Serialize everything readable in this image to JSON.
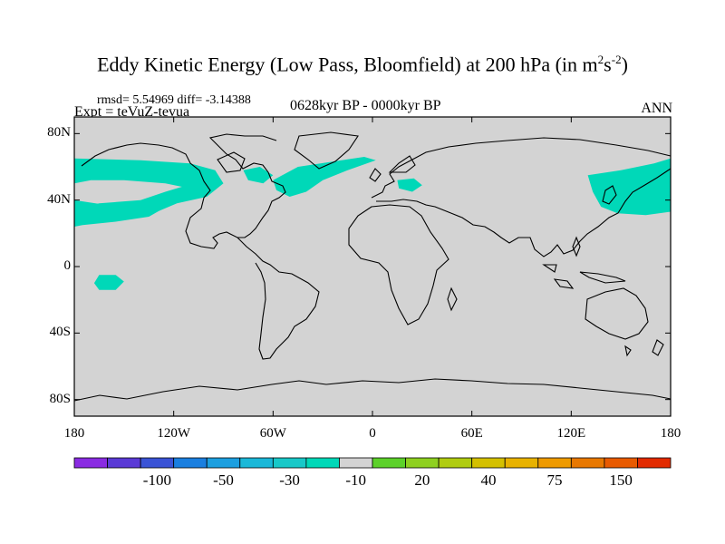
{
  "title": {
    "main": "Eddy Kinetic Energy (Low Pass, Bloomfield) at 200 hPa (in m",
    "unit_sup1": "2",
    "unit_mid": "s",
    "unit_sup2": "-2",
    "unit_close": ")"
  },
  "stats": "rmsd= 5.54969 diff= -3.14388",
  "period": "0628kyr BP - 0000kyr BP",
  "experiment": "Expt = teVuZ-tevua",
  "season": "ANN",
  "map": {
    "projection": "cylindrical-equidistant",
    "lon_range": [
      -180,
      180
    ],
    "lat_range": [
      -90,
      90
    ],
    "background_color": "#d3d3d3",
    "y_ticks": [
      {
        "lat": 80,
        "label": "80N"
      },
      {
        "lat": 40,
        "label": "40N"
      },
      {
        "lat": 0,
        "label": "0"
      },
      {
        "lat": -40,
        "label": "40S"
      },
      {
        "lat": -80,
        "label": "80S"
      }
    ],
    "x_ticks": [
      {
        "lon": -180,
        "label": "180"
      },
      {
        "lon": -120,
        "label": "120W"
      },
      {
        "lon": -60,
        "label": "60W"
      },
      {
        "lon": 0,
        "label": "0"
      },
      {
        "lon": 60,
        "label": "60E"
      },
      {
        "lon": 120,
        "label": "120E"
      },
      {
        "lon": 180,
        "label": "180"
      }
    ],
    "anomaly_regions": [
      {
        "name": "north-pacific-band",
        "level": -10,
        "color": "#00d8b8",
        "polygon_lonlat": [
          [
            -180,
            65
          ],
          [
            -140,
            64
          ],
          [
            -110,
            62
          ],
          [
            -95,
            58
          ],
          [
            -90,
            50
          ],
          [
            -100,
            42
          ],
          [
            -118,
            38
          ],
          [
            -130,
            33
          ],
          [
            -150,
            30
          ],
          [
            -170,
            28
          ],
          [
            -180,
            27
          ],
          [
            -180,
            34
          ],
          [
            -165,
            38
          ],
          [
            -140,
            40
          ],
          [
            -125,
            45
          ],
          [
            -115,
            48
          ],
          [
            -125,
            50
          ],
          [
            -150,
            52
          ],
          [
            -170,
            52
          ],
          [
            -180,
            50
          ]
        ]
      },
      {
        "name": "east-pacific-subtropical-band",
        "level": -10,
        "color": "#00d8b8",
        "polygon_lonlat": [
          [
            -180,
            40
          ],
          [
            -160,
            37
          ],
          [
            -140,
            38
          ],
          [
            -128,
            34
          ],
          [
            -135,
            30
          ],
          [
            -155,
            27
          ],
          [
            -175,
            25
          ],
          [
            -180,
            24
          ]
        ]
      },
      {
        "name": "north-atlantic-band",
        "level": -10,
        "color": "#00d8b8",
        "polygon_lonlat": [
          [
            -60,
            52
          ],
          [
            -45,
            60
          ],
          [
            -25,
            63
          ],
          [
            -5,
            66
          ],
          [
            2,
            64
          ],
          [
            -15,
            58
          ],
          [
            -30,
            52
          ],
          [
            -40,
            45
          ],
          [
            -50,
            42
          ],
          [
            -58,
            46
          ]
        ]
      },
      {
        "name": "labrador-patch",
        "level": -10,
        "color": "#00d8b8",
        "polygon_lonlat": [
          [
            -78,
            58
          ],
          [
            -68,
            60
          ],
          [
            -60,
            55
          ],
          [
            -66,
            50
          ],
          [
            -75,
            52
          ]
        ]
      },
      {
        "name": "europe-patch",
        "level": -10,
        "color": "#00d8b8",
        "polygon_lonlat": [
          [
            15,
            52
          ],
          [
            25,
            53
          ],
          [
            30,
            49
          ],
          [
            24,
            45
          ],
          [
            16,
            47
          ]
        ]
      },
      {
        "name": "northwest-pacific-band",
        "level": -10,
        "color": "#00d8b8",
        "polygon_lonlat": [
          [
            130,
            55
          ],
          [
            150,
            58
          ],
          [
            170,
            62
          ],
          [
            180,
            65
          ],
          [
            180,
            33
          ],
          [
            165,
            31
          ],
          [
            148,
            32
          ],
          [
            138,
            36
          ],
          [
            133,
            45
          ]
        ]
      },
      {
        "name": "tropical-pacific-patch",
        "level": -10,
        "color": "#00d8b8",
        "polygon_lonlat": [
          [
            -165,
            -5
          ],
          [
            -155,
            -5
          ],
          [
            -150,
            -9
          ],
          [
            -155,
            -14
          ],
          [
            -165,
            -14
          ],
          [
            -168,
            -10
          ]
        ]
      }
    ]
  },
  "colorbar": {
    "colors": [
      "#8a2be2",
      "#5a3ad6",
      "#3a53d6",
      "#1a7fe0",
      "#1c9fe0",
      "#1ab8d8",
      "#18c8c8",
      "#00d8b8",
      "#d3d3d3",
      "#5cd12a",
      "#8ed020",
      "#b0cc10",
      "#d4c000",
      "#e8b200",
      "#ee9a00",
      "#e87800",
      "#e85a00",
      "#e22a00"
    ],
    "labels": [
      {
        "boundary": 2,
        "text": "-100"
      },
      {
        "boundary": 4,
        "text": "-50"
      },
      {
        "boundary": 6,
        "text": "-30"
      },
      {
        "boundary": 8,
        "text": "-10"
      },
      {
        "boundary": 10,
        "text": "20"
      },
      {
        "boundary": 12,
        "text": "40"
      },
      {
        "boundary": 14,
        "text": "75"
      },
      {
        "boundary": 16,
        "text": "150"
      }
    ]
  }
}
